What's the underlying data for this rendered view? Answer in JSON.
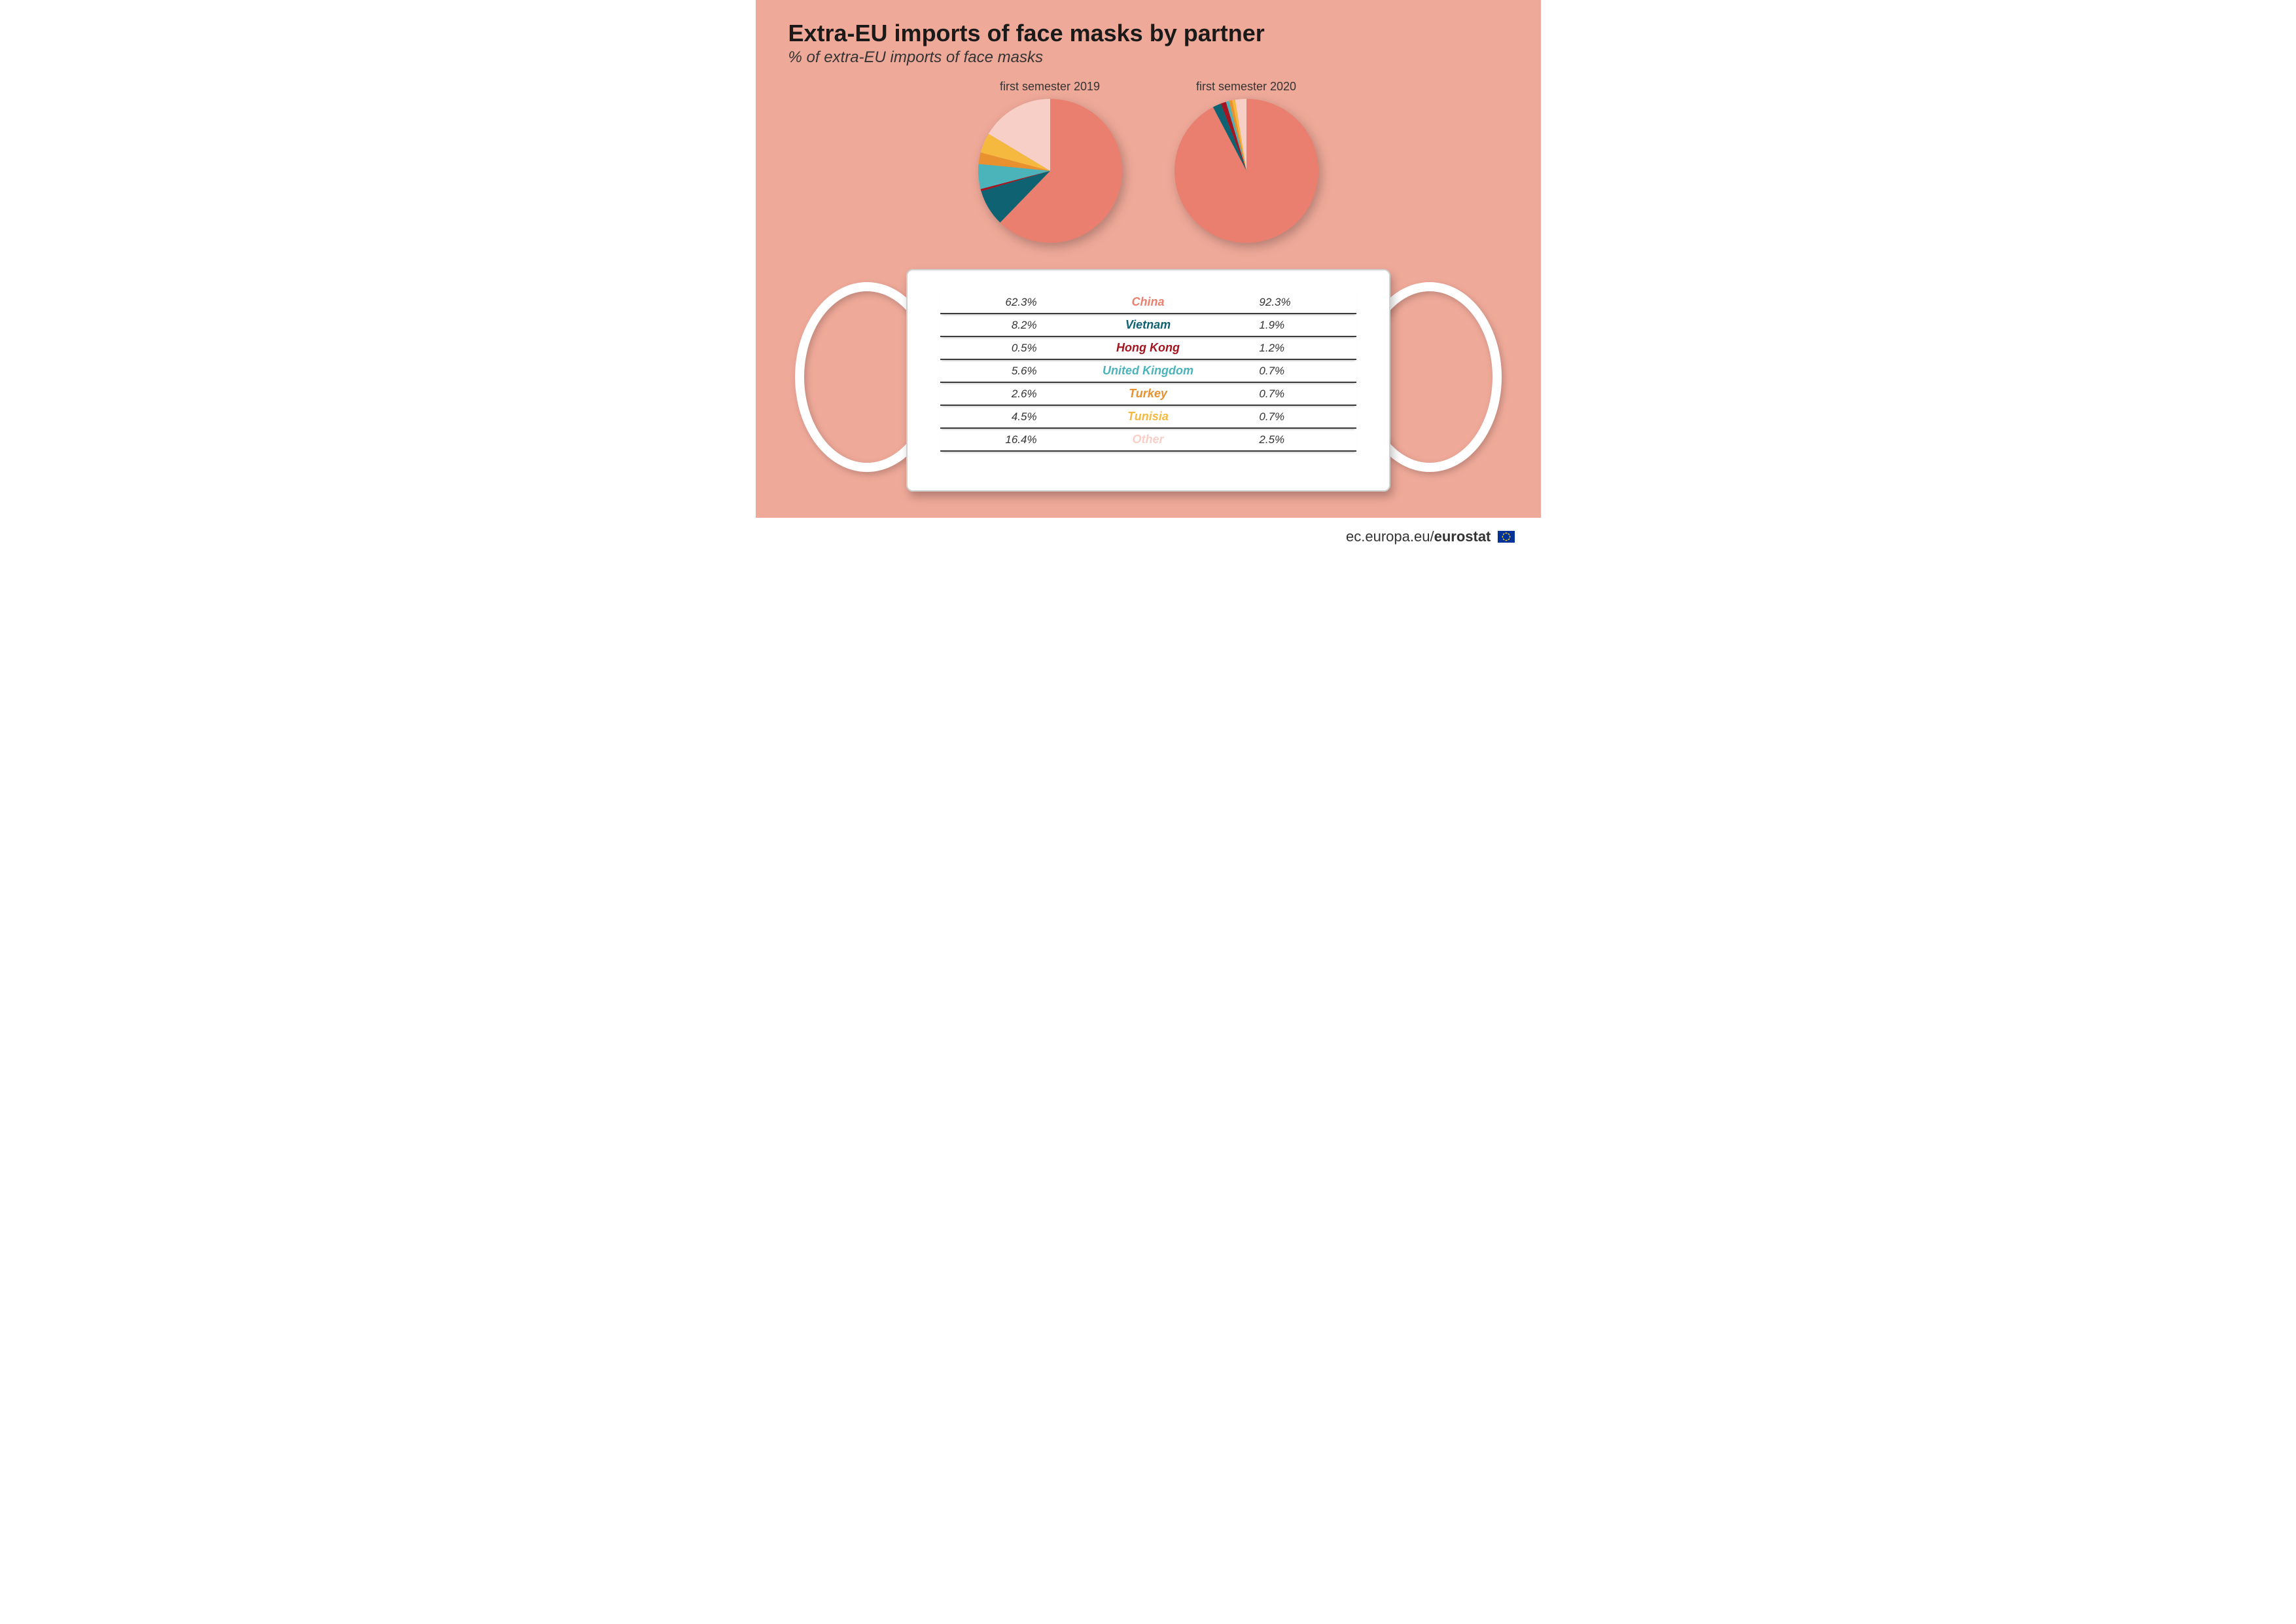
{
  "layout": {
    "background_color": "#efa999",
    "footer_background": "#ffffff",
    "title_color": "#1a1a1a",
    "subtitle_color": "#333333",
    "row_border_color": "#3a3a3a",
    "mask_body_color": "#ffffff",
    "strap_color": "#ffffff"
  },
  "header": {
    "title": "Extra-EU imports of face masks by partner",
    "subtitle": "% of extra-EU imports of face masks"
  },
  "categories": [
    {
      "key": "china",
      "label": "China",
      "color": "#ea7f70"
    },
    {
      "key": "vietnam",
      "label": "Vietnam",
      "color": "#0e6272"
    },
    {
      "key": "hk",
      "label": "Hong Kong",
      "color": "#a31621"
    },
    {
      "key": "uk",
      "label": "United Kingdom",
      "color": "#4bb4ba"
    },
    {
      "key": "turkey",
      "label": "Turkey",
      "color": "#e9912f"
    },
    {
      "key": "tunisia",
      "label": "Tunisia",
      "color": "#f5b940"
    },
    {
      "key": "other",
      "label": "Other",
      "color": "#f7cfc6"
    }
  ],
  "charts": {
    "pie2019": {
      "type": "pie",
      "title": "first semester 2019",
      "radius": 110,
      "start_angle_deg": -90,
      "direction": "clockwise",
      "values": {
        "china": 62.3,
        "vietnam": 8.2,
        "hk": 0.5,
        "uk": 5.6,
        "turkey": 2.6,
        "tunisia": 4.5,
        "other": 16.4
      }
    },
    "pie2020": {
      "type": "pie",
      "title": "first semester 2020",
      "radius": 110,
      "start_angle_deg": -90,
      "direction": "clockwise",
      "values": {
        "china": 92.3,
        "vietnam": 1.9,
        "hk": 1.2,
        "uk": 0.7,
        "turkey": 0.7,
        "tunisia": 0.7,
        "other": 2.5
      }
    }
  },
  "table": {
    "rows": [
      {
        "left": "62.3%",
        "key": "china",
        "right": "92.3%"
      },
      {
        "left": "8.2%",
        "key": "vietnam",
        "right": "1.9%"
      },
      {
        "left": "0.5%",
        "key": "hk",
        "right": "1.2%"
      },
      {
        "left": "5.6%",
        "key": "uk",
        "right": "0.7%"
      },
      {
        "left": "2.6%",
        "key": "turkey",
        "right": "0.7%"
      },
      {
        "left": "4.5%",
        "key": "tunisia",
        "right": "0.7%"
      },
      {
        "left": "16.4%",
        "key": "other",
        "right": "2.5%"
      }
    ],
    "value_fontsize_pt": 13,
    "label_fontsize_pt": 14
  },
  "footer": {
    "text_prefix": "ec.europa.eu/",
    "text_bold": "eurostat"
  }
}
